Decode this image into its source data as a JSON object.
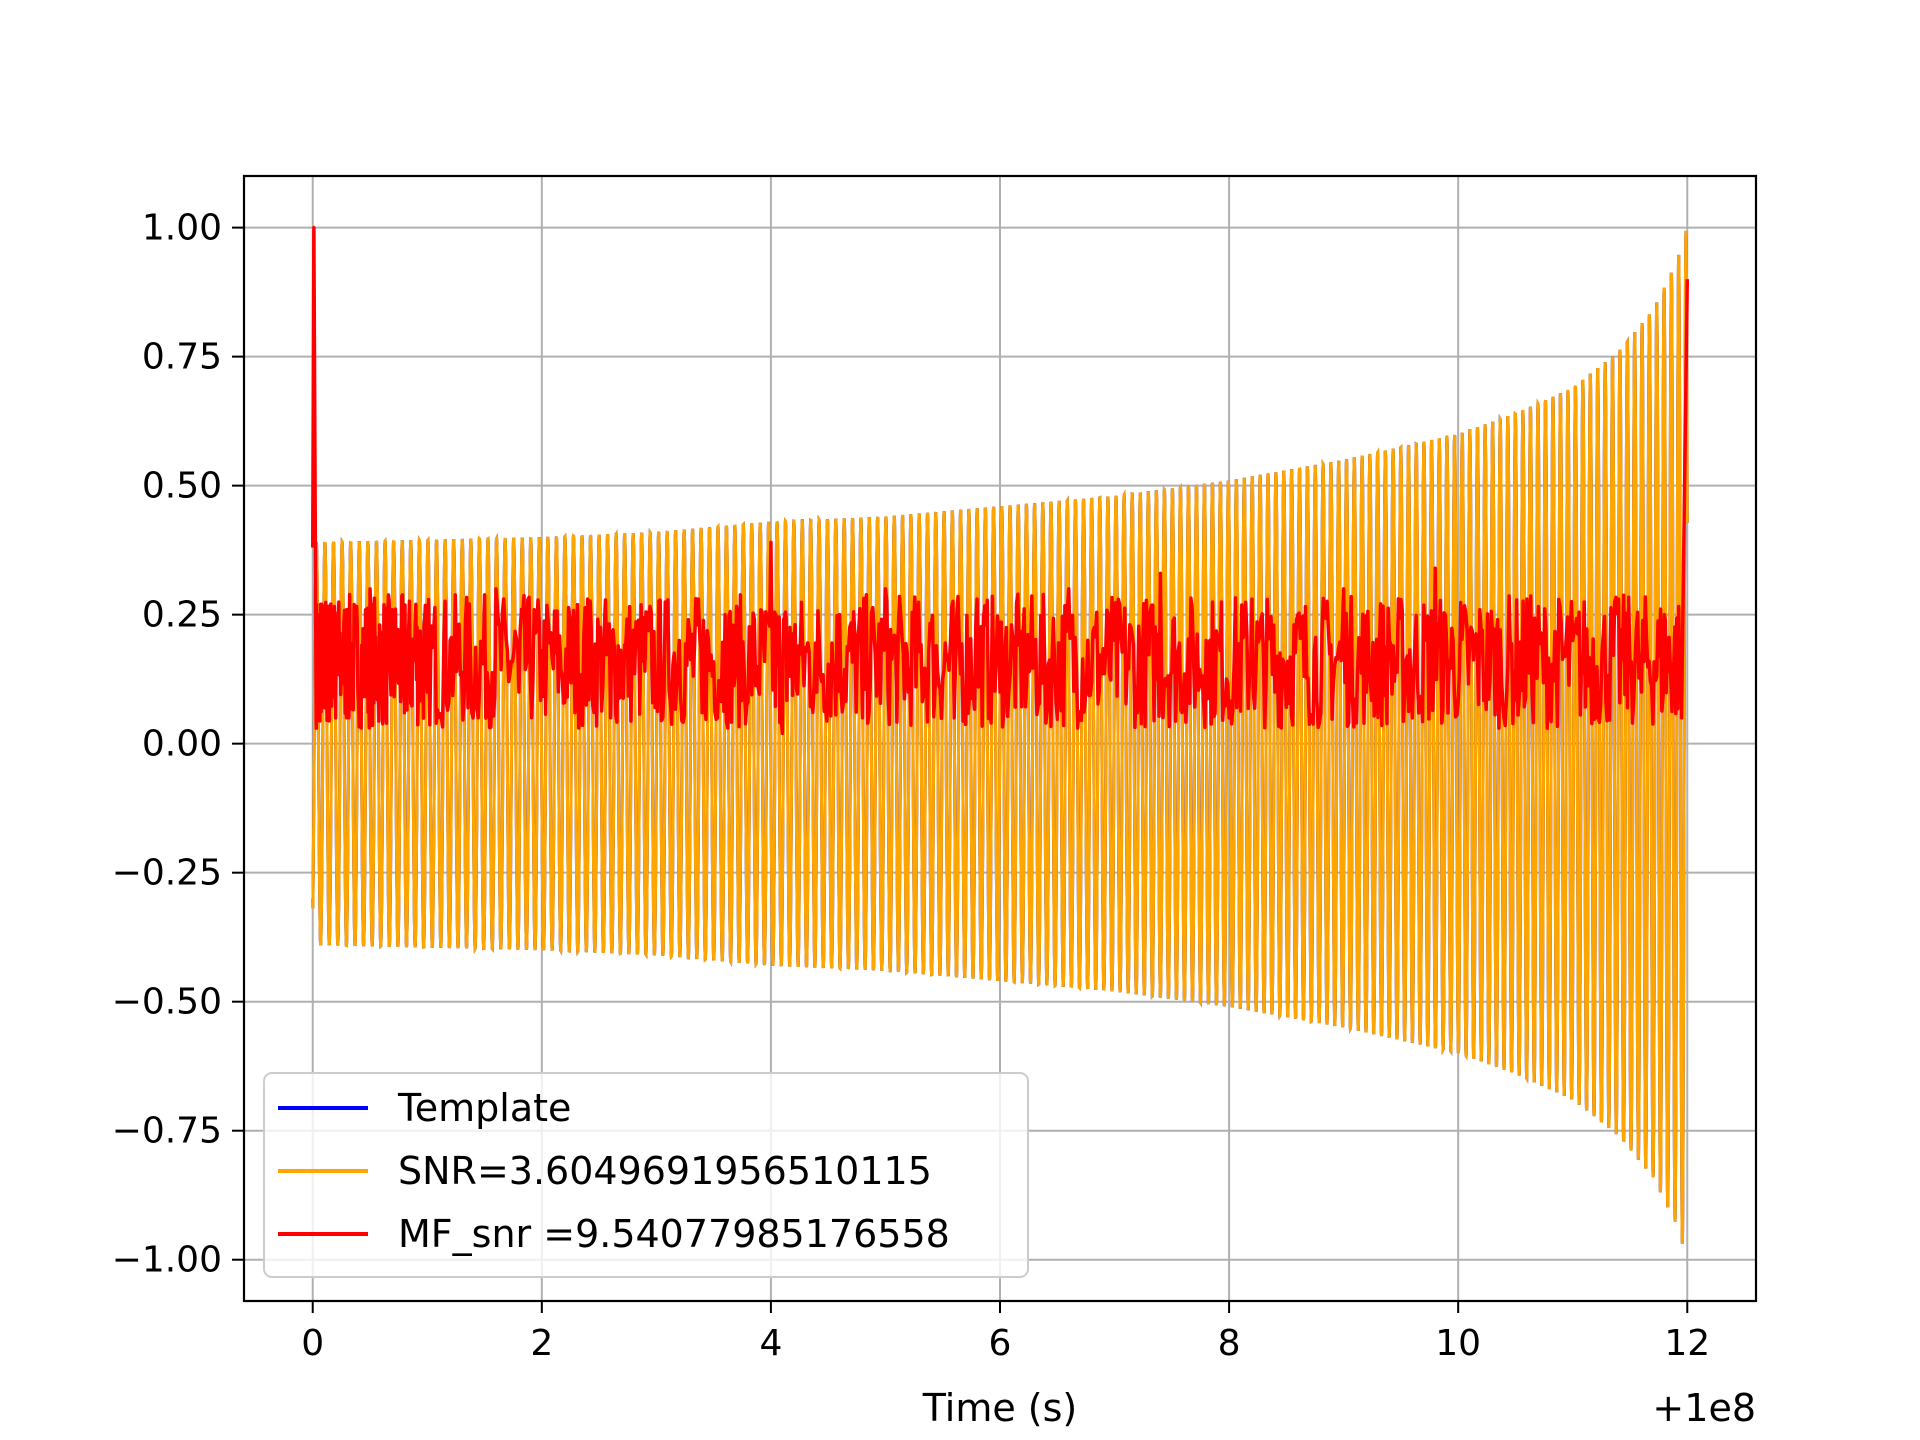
{
  "chart_data": {
    "type": "line",
    "title": "",
    "xlabel": "Time (s)",
    "ylabel": "",
    "x_offset_label": "+1e8",
    "xlim": [
      -0.6,
      12.6
    ],
    "ylim": [
      -1.08,
      1.1
    ],
    "xticks": [
      0,
      2,
      4,
      6,
      8,
      10,
      12
    ],
    "xtick_labels": [
      "0",
      "2",
      "4",
      "6",
      "8",
      "10",
      "12"
    ],
    "yticks": [
      1.0,
      0.75,
      0.5,
      0.25,
      0.0,
      -0.25,
      -0.5,
      -0.75,
      -1.0
    ],
    "ytick_labels": [
      "1.00",
      "0.75",
      "0.50",
      "0.25",
      "0.00",
      "−0.25",
      "−0.50",
      "−0.75",
      "−1.00"
    ],
    "grid": true,
    "legend_position": "lower-left",
    "series": [
      {
        "name": "Template",
        "color": "#0000ff",
        "description_points": [
          [
            0,
            -0.3
          ],
          [
            0.05,
            0.39
          ],
          [
            2,
            0.4
          ],
          [
            4,
            0.41
          ],
          [
            6,
            0.45
          ],
          [
            8,
            0.5
          ],
          [
            10,
            0.6
          ],
          [
            11,
            0.7
          ],
          [
            11.6,
            0.85
          ],
          [
            12,
            1.0
          ]
        ]
      },
      {
        "name": "SNR=3.6049691956510115",
        "color": "#ffa500",
        "envelope": [
          [
            0.0,
            0.39
          ],
          [
            1.0,
            0.395
          ],
          [
            2.0,
            0.4
          ],
          [
            3.0,
            0.41
          ],
          [
            4.0,
            0.43
          ],
          [
            5.0,
            0.44
          ],
          [
            6.0,
            0.46
          ],
          [
            7.0,
            0.48
          ],
          [
            8.0,
            0.51
          ],
          [
            9.0,
            0.55
          ],
          [
            10.0,
            0.6
          ],
          [
            10.5,
            0.64
          ],
          [
            11.0,
            0.69
          ],
          [
            11.4,
            0.76
          ],
          [
            11.7,
            0.84
          ],
          [
            11.9,
            0.93
          ],
          [
            12.0,
            1.0
          ]
        ],
        "cycles": 160,
        "start_value": -0.3
      },
      {
        "name": "MF_snr =9.54077985176558",
        "color": "#ff0000",
        "x": [
          0.0,
          0.01,
          0.03,
          0.06,
          0.1,
          0.15,
          0.2,
          0.3,
          0.4,
          0.5,
          0.6,
          0.7,
          0.8,
          0.9,
          1.0,
          1.2,
          1.4,
          1.6,
          1.8,
          2.0,
          2.2,
          2.4,
          2.6,
          2.8,
          3.0,
          3.2,
          3.4,
          3.6,
          3.8,
          4.0,
          4.1,
          4.2,
          4.4,
          4.6,
          4.8,
          5.0,
          5.2,
          5.4,
          5.6,
          5.8,
          6.0,
          6.2,
          6.4,
          6.6,
          6.8,
          7.0,
          7.2,
          7.4,
          7.6,
          7.8,
          8.0,
          8.2,
          8.4,
          8.6,
          8.8,
          9.0,
          9.2,
          9.4,
          9.6,
          9.8,
          10.0,
          10.2,
          10.4,
          10.6,
          10.8,
          11.0,
          11.2,
          11.4,
          11.6,
          11.8,
          11.95,
          12.0
        ],
        "y": [
          0.38,
          1.0,
          0.05,
          0.25,
          0.1,
          0.2,
          0.05,
          0.26,
          0.08,
          0.3,
          0.12,
          0.15,
          0.06,
          0.27,
          0.1,
          0.2,
          0.05,
          0.3,
          0.1,
          0.18,
          0.08,
          0.28,
          0.05,
          0.22,
          0.12,
          0.2,
          0.06,
          0.25,
          0.08,
          0.39,
          0.02,
          0.2,
          0.1,
          0.25,
          0.05,
          0.3,
          0.1,
          0.22,
          0.05,
          0.28,
          0.1,
          0.2,
          0.04,
          0.3,
          0.12,
          0.2,
          0.06,
          0.33,
          0.1,
          0.2,
          0.05,
          0.28,
          0.1,
          0.25,
          0.06,
          0.3,
          0.1,
          0.2,
          0.05,
          0.34,
          0.08,
          0.22,
          0.05,
          0.28,
          0.1,
          0.2,
          0.05,
          0.28,
          0.1,
          0.25,
          0.05,
          0.9
        ]
      }
    ]
  }
}
